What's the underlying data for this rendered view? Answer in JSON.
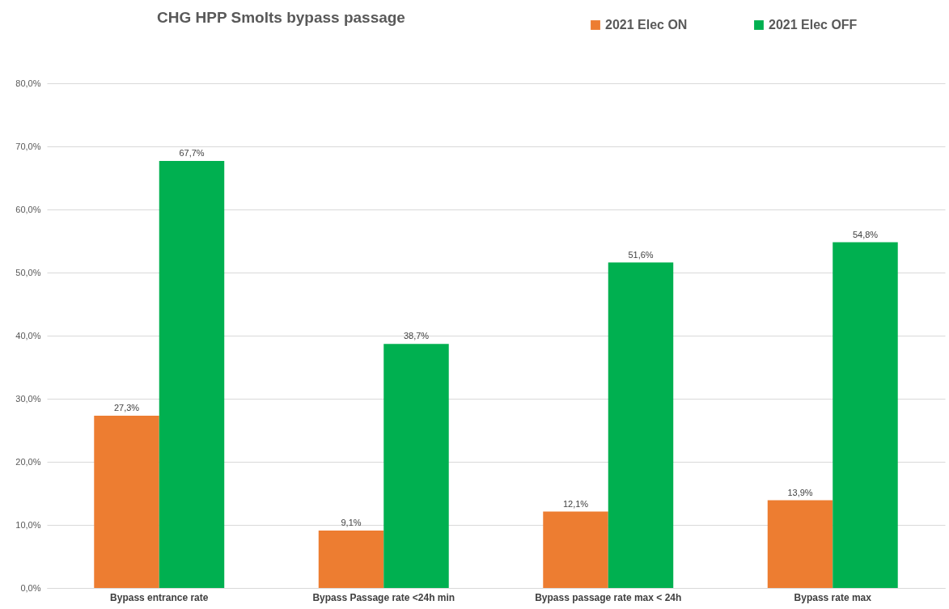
{
  "chart_data": {
    "type": "bar",
    "title": "CHG HPP Smolts bypass passage",
    "categories": [
      "Bypass entrance rate",
      "Bypass Passage rate <24h min",
      "Bypass passage rate max < 24h",
      "Bypass rate max"
    ],
    "series": [
      {
        "name": "2021 Elec ON",
        "color": "#ed7d31",
        "values": [
          27.3,
          9.1,
          12.1,
          13.9
        ],
        "value_labels": [
          "27,3%",
          "9,1%",
          "12,1%",
          "13,9%"
        ]
      },
      {
        "name": "2021 Elec OFF",
        "color": "#00b050",
        "values": [
          67.7,
          38.7,
          51.6,
          54.8
        ],
        "value_labels": [
          "67,7%",
          "38,7%",
          "51,6%",
          "54,8%"
        ]
      }
    ],
    "ylim": [
      0,
      80
    ],
    "yticks": [
      {
        "value": 0,
        "label": "0,0%"
      },
      {
        "value": 10,
        "label": "10,0%"
      },
      {
        "value": 20,
        "label": "20,0%"
      },
      {
        "value": 30,
        "label": "30,0%"
      },
      {
        "value": 40,
        "label": "40,0%"
      },
      {
        "value": 50,
        "label": "50,0%"
      },
      {
        "value": 60,
        "label": "60,0%"
      },
      {
        "value": 70,
        "label": "70,0%"
      },
      {
        "value": 80,
        "label": "80,0%"
      }
    ],
    "grid": "y",
    "legend": "top right"
  }
}
